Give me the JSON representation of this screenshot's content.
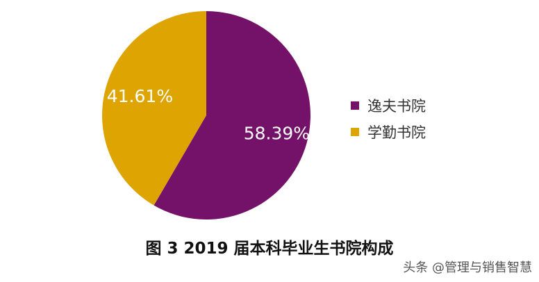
{
  "chart_data": {
    "type": "pie",
    "categories": [
      "逸夫书院",
      "学勤书院"
    ],
    "values": [
      58.39,
      41.61
    ],
    "data_labels": [
      "58.39%",
      "41.61%"
    ],
    "colors": [
      "#74126a",
      "#dea402"
    ],
    "legend_position": "right"
  },
  "caption": "图 3  2019 届本科毕业生书院构成",
  "watermark": "头条 @管理与销售智慧"
}
